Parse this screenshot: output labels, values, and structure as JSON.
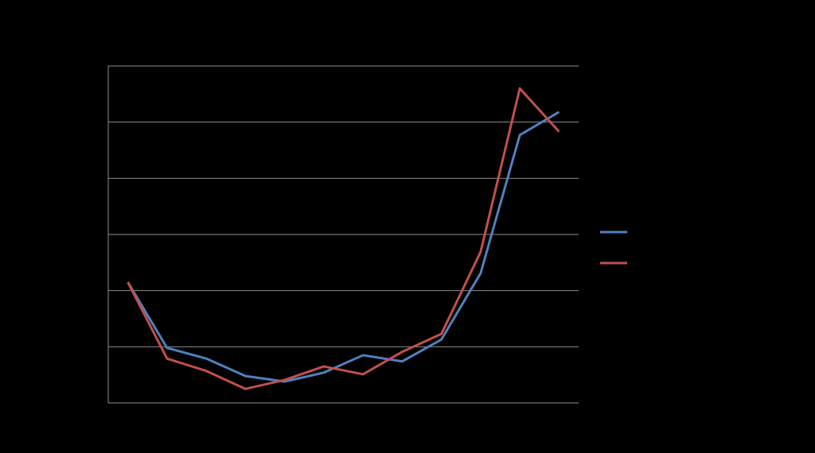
{
  "chart_data": {
    "type": "line",
    "categories": [
      null,
      null,
      null,
      null,
      null,
      null,
      null,
      null,
      null,
      null,
      null,
      null
    ],
    "series": [
      {
        "color": "#4f81bd",
        "values": [
          2.15,
          0.98,
          0.79,
          0.48,
          0.38,
          0.54,
          0.85,
          0.74,
          1.13,
          2.31,
          4.77,
          5.18
        ]
      },
      {
        "color": "#c0504d",
        "values": [
          2.15,
          0.79,
          0.57,
          0.25,
          0.41,
          0.65,
          0.51,
          0.91,
          1.23,
          2.69,
          5.6,
          4.83
        ]
      }
    ],
    "ylim": [
      0,
      6
    ],
    "yticks": [
      0,
      1,
      2,
      3,
      4,
      5,
      6
    ],
    "grid": true,
    "legend": "right"
  }
}
